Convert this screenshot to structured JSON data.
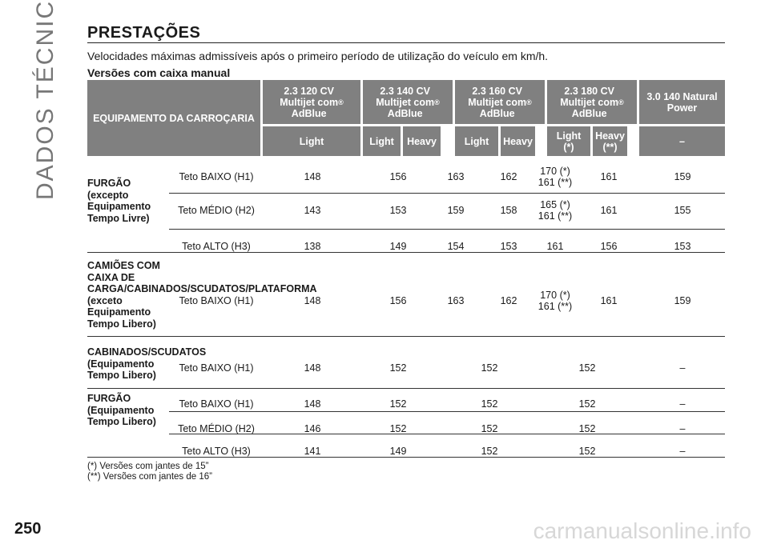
{
  "side_label": "DADOS TÉCNICOS",
  "heading": "PRESTAÇÕES",
  "subtitle": "Velocidades máximas admissíveis após o primeiro período de utilização do veículo em km/h.",
  "section": "Versões com caixa manual",
  "header": {
    "equip": "EQUIPAMENTO DA CARROÇARIA",
    "engines": [
      {
        "line1": "2.3 120 CV",
        "line2": "Multijet com",
        "line3": "AdBlue",
        "sup": "®"
      },
      {
        "line1": "2.3 140 CV",
        "line2": "Multijet com",
        "line3": "AdBlue",
        "sup": "®"
      },
      {
        "line1": "2.3 160 CV",
        "line2": "Multijet com",
        "line3": "AdBlue",
        "sup": "®"
      },
      {
        "line1": "2.3 180 CV",
        "line2": "Multijet com",
        "line3": "AdBlue",
        "sup": "®"
      },
      {
        "line1": "3.0 140 Natural",
        "line2": "Power"
      }
    ],
    "sub": [
      "Light",
      "Light",
      "Heavy",
      "Light",
      "Heavy",
      "Light (*)",
      "Heavy (**)",
      "–"
    ]
  },
  "groups": [
    {
      "label": "FURGÃO\n(excepto\nEquipamento\nTempo Livre)",
      "rows": [
        {
          "roof": "Teto BAIXO (H1)",
          "v": [
            "148",
            "156",
            "163",
            "162",
            "170 (*)\n161 (**)",
            "161",
            "159"
          ]
        },
        {
          "roof": "Teto MÉDIO (H2)",
          "v": [
            "143",
            "153",
            "159",
            "158",
            "165 (*)\n161 (**)",
            "161",
            "155"
          ]
        },
        {
          "roof": "Teto ALTO (H3)",
          "v": [
            "138",
            "149",
            "154",
            "153",
            "161",
            "156",
            "153"
          ]
        }
      ]
    },
    {
      "label": "CAMIÕES COM\nCAIXA DE\nCARGA/CABINADOS/SCUDATOS/PLATAFORMA\n(exceto\nEquipamento\nTempo Libero)",
      "rows": [
        {
          "roof": "Teto BAIXO (H1)",
          "v": [
            "148",
            "156",
            "163",
            "162",
            "170 (*)\n161 (**)",
            "161",
            "159"
          ]
        }
      ]
    },
    {
      "label": "CABINADOS/SCUDATOS\n(Equipamento\nTempo Libero)",
      "rows": [
        {
          "roof": "Teto BAIXO (H1)",
          "v": [
            "148",
            "152",
            "152",
            "152",
            "–"
          ]
        }
      ]
    },
    {
      "label": "FURGÃO\n(Equipamento\nTempo Libero)",
      "rows": [
        {
          "roof": "Teto BAIXO (H1)",
          "v": [
            "148",
            "152",
            "152",
            "152",
            "–"
          ]
        },
        {
          "roof": "Teto MÉDIO (H2)",
          "v": [
            "146",
            "152",
            "152",
            "152",
            "–"
          ]
        },
        {
          "roof": "Teto ALTO (H3)",
          "v": [
            "141",
            "149",
            "152",
            "152",
            "–"
          ]
        }
      ]
    }
  ],
  "notes": [
    "(*) Versões com jantes de 15”",
    "(**) Versões com jantes de 16”"
  ],
  "page_number": "250",
  "watermark": "carmanualsonline.info"
}
